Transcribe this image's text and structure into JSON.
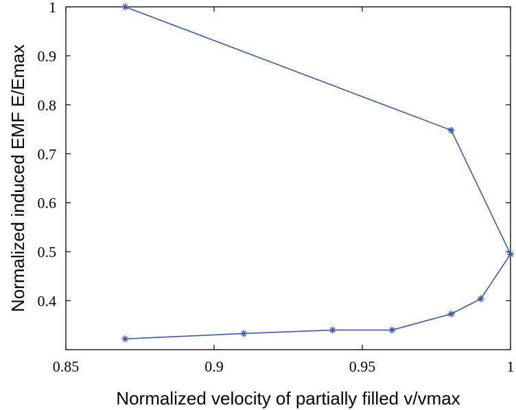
{
  "chart_data": {
    "type": "line",
    "title": "",
    "xlabel": "Normalized velocity of partially filled v/vmax",
    "ylabel": "Normalized induced EMF E/Emax",
    "xlim": [
      0.85,
      1.0
    ],
    "ylim": [
      0.3,
      1.0
    ],
    "xticks": [
      0.85,
      0.9,
      0.95,
      1.0
    ],
    "xtick_labels": [
      "0.85",
      "0.9",
      "0.95",
      "1"
    ],
    "yticks": [
      0.4,
      0.5,
      0.6,
      0.7,
      0.8,
      0.9,
      1.0
    ],
    "ytick_labels": [
      "0.4",
      "0.5",
      "0.6",
      "0.7",
      "0.8",
      "0.9",
      "1"
    ],
    "grid": false,
    "legend": "none",
    "series": [
      {
        "color": "#3a5ba8",
        "marker": "asterisk",
        "x": [
          0.87,
          0.91,
          0.94,
          0.96,
          0.98,
          0.99,
          1.0,
          0.98,
          0.87
        ],
        "y": [
          0.322,
          0.333,
          0.34,
          0.34,
          0.373,
          0.404,
          0.495,
          0.748,
          1.0
        ]
      }
    ]
  }
}
